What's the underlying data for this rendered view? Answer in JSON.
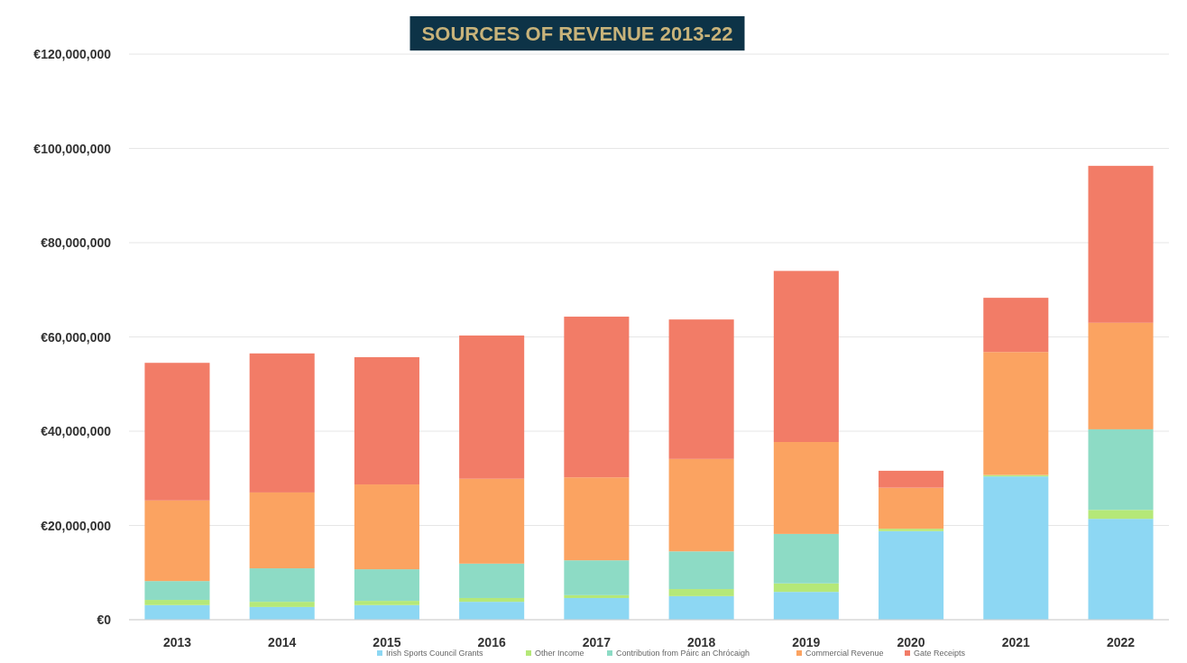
{
  "chart_data": {
    "type": "bar",
    "title": "SOURCES OF REVENUE 2013-22",
    "categories": [
      "2013",
      "2014",
      "2015",
      "2016",
      "2017",
      "2018",
      "2019",
      "2020",
      "2021",
      "2022"
    ],
    "stacked": true,
    "series": [
      {
        "name": "Irish Sports Council Grants",
        "color": "#8dd7f3",
        "values": [
          3100000,
          2700000,
          3100000,
          3800000,
          4600000,
          5000000,
          5900000,
          18800000,
          30400000,
          21400000
        ]
      },
      {
        "name": "Other Income",
        "color": "#b5e878",
        "values": [
          1100000,
          1100000,
          900000,
          800000,
          600000,
          1500000,
          1800000,
          500000,
          300000,
          1900000
        ]
      },
      {
        "name": "Contribution from Páirc an Chrócaigh",
        "color": "#8ddbc5",
        "values": [
          4000000,
          7100000,
          6700000,
          7300000,
          7400000,
          8000000,
          10500000,
          0,
          0,
          17100000
        ]
      },
      {
        "name": "Commercial Revenue",
        "color": "#fba361",
        "values": [
          17100000,
          16100000,
          18000000,
          18000000,
          17600000,
          19600000,
          19500000,
          8700000,
          26100000,
          22600000
        ]
      },
      {
        "name": "Gate Receipts",
        "color": "#f27c67",
        "values": [
          29200000,
          29500000,
          27000000,
          30400000,
          34100000,
          29600000,
          36300000,
          3600000,
          11500000,
          33300000
        ]
      }
    ],
    "ylim": [
      0,
      120000000
    ],
    "yticks": [
      {
        "value": 0,
        "label": "€0"
      },
      {
        "value": 20000000,
        "label": "€20,000,000"
      },
      {
        "value": 40000000,
        "label": "€40,000,000"
      },
      {
        "value": 60000000,
        "label": "€60,000,000"
      },
      {
        "value": 80000000,
        "label": "€80,000,000"
      },
      {
        "value": 100000000,
        "label": "€100,000,000"
      },
      {
        "value": 120000000,
        "label": "€120,000,000"
      }
    ],
    "grid": "y",
    "legend": "bottom"
  }
}
